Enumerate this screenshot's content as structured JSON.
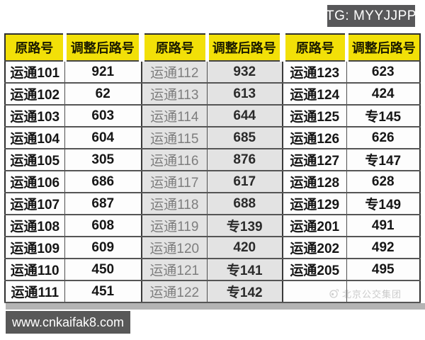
{
  "badges": {
    "tg": "TG: MYYJJPP",
    "site": "www.cnkaifak8.com"
  },
  "table": {
    "headers": [
      "原路号",
      "调整后路号",
      "原路号",
      "调整后路号",
      "原路号",
      "调整后路号"
    ],
    "rows": [
      [
        "运通101",
        "921",
        "运通112",
        "932",
        "运通123",
        "623"
      ],
      [
        "运通102",
        "62",
        "运通113",
        "613",
        "运通124",
        "424"
      ],
      [
        "运通103",
        "603",
        "运通114",
        "644",
        "运通125",
        "专145"
      ],
      [
        "运通104",
        "604",
        "运通115",
        "685",
        "运通126",
        "626"
      ],
      [
        "运通105",
        "305",
        "运通116",
        "876",
        "运通127",
        "专147"
      ],
      [
        "运通106",
        "686",
        "运通117",
        "617",
        "运通128",
        "628"
      ],
      [
        "运通107",
        "687",
        "运通118",
        "688",
        "运通129",
        "专149"
      ],
      [
        "运通108",
        "608",
        "运通119",
        "专139",
        "运通201",
        "491"
      ],
      [
        "运通109",
        "609",
        "运通120",
        "420",
        "运通202",
        "492"
      ],
      [
        "运通110",
        "450",
        "运通121",
        "专141",
        "运通205",
        "495"
      ],
      [
        "运通111",
        "451",
        "运通122",
        "专142",
        "",
        ""
      ]
    ],
    "watermark_text": "北京公交集团"
  },
  "colors": {
    "header_yellow": "#f2e008",
    "badge_gray": "#58585a",
    "middle_column_gray": "#e3e3e3",
    "table_border": "#2f2f2f",
    "shadow_gray": "#b4b4b4"
  }
}
